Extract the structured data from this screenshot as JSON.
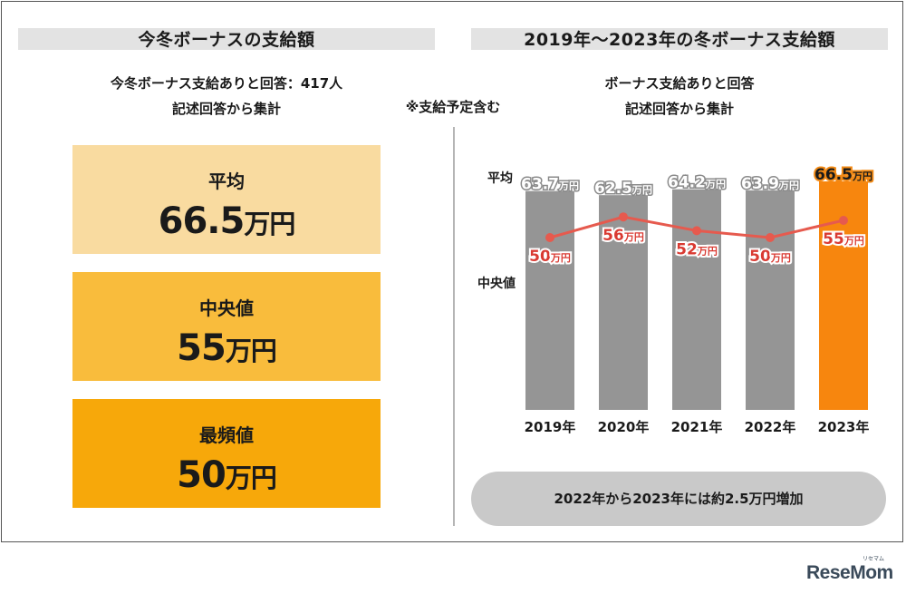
{
  "left_panel": {
    "title": "今冬ボーナスの支給額",
    "subtitle_line1": "今冬ボーナス支給ありと回答：417人",
    "subtitle_line2": "記述回答から集計",
    "stats": [
      {
        "label": "平均",
        "value": "66.5",
        "unit": "万円",
        "color": "#f9dba0"
      },
      {
        "label": "中央値",
        "value": "55",
        "unit": "万円",
        "color": "#f9bc3c"
      },
      {
        "label": "最頻値",
        "value": "50",
        "unit": "万円",
        "color": "#f7a80a"
      }
    ]
  },
  "note": "※支給予定含む",
  "right_panel": {
    "title": "2019年〜2023年の冬ボーナス支給額",
    "subtitle_line1": "ボーナス支給ありと回答",
    "subtitle_line2": "記述回答から集計",
    "footer": "2022年から2023年には約2.5万円増加"
  },
  "chart_data": {
    "type": "bar",
    "categories": [
      "2019年",
      "2020年",
      "2021年",
      "2022年",
      "2023年"
    ],
    "series": [
      {
        "name": "平均",
        "kind": "bar",
        "values": [
          63.7,
          62.5,
          64.2,
          63.9,
          66.5
        ],
        "labels": [
          "63.7",
          "62.5",
          "64.2",
          "63.9",
          "66.5"
        ],
        "unit": "万円"
      },
      {
        "name": "中央値",
        "kind": "line",
        "values": [
          50,
          56,
          52,
          50,
          55
        ],
        "labels": [
          "50",
          "56",
          "52",
          "50",
          "55"
        ],
        "unit": "万円"
      }
    ],
    "colors": {
      "bar": "#959595",
      "bar_highlight": "#f7860e",
      "line": "#e65a4e",
      "label_text": "#d93a32",
      "label_stroke": "#ffffff",
      "highlight_label": "#f28a16"
    }
  },
  "logo": {
    "text": "ReseMom",
    "sub": "リセマム"
  }
}
